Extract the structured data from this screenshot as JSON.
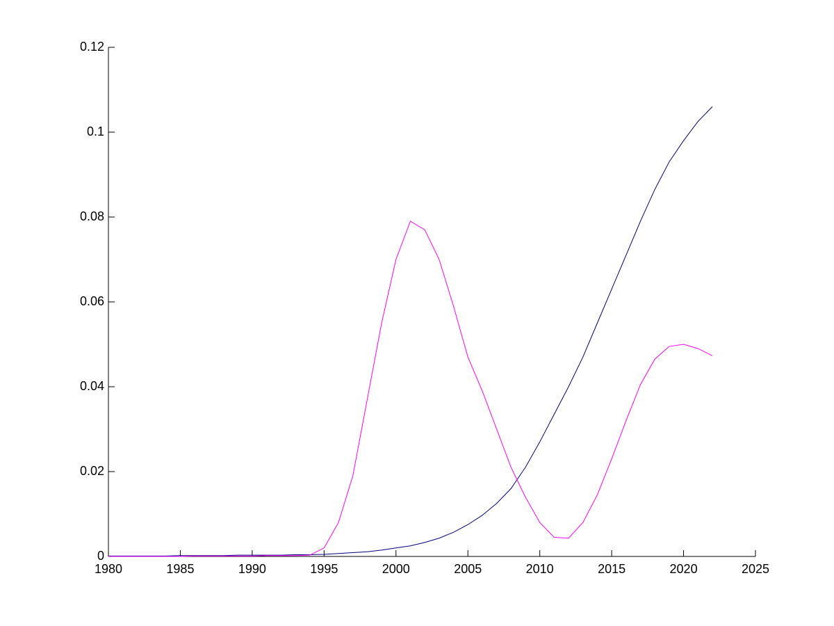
{
  "chart_data": {
    "type": "line",
    "x": [
      1980,
      1981,
      1982,
      1983,
      1984,
      1985,
      1986,
      1987,
      1988,
      1989,
      1990,
      1991,
      1992,
      1993,
      1994,
      1995,
      1996,
      1997,
      1998,
      1999,
      2000,
      2001,
      2002,
      2003,
      2004,
      2005,
      2006,
      2007,
      2008,
      2009,
      2010,
      2011,
      2012,
      2013,
      2014,
      2015,
      2016,
      2017,
      2018,
      2019,
      2020,
      2021,
      2022
    ],
    "series": [
      {
        "color": "#000080",
        "values": [
          0.0001,
          0.0001,
          0.0001,
          0.0001,
          0.0001,
          0.0002,
          0.0002,
          0.0002,
          0.0002,
          0.0003,
          0.0003,
          0.0003,
          0.0003,
          0.0004,
          0.0004,
          0.0005,
          0.0007,
          0.0009,
          0.0011,
          0.0015,
          0.002,
          0.0025,
          0.0033,
          0.0043,
          0.0057,
          0.0075,
          0.0097,
          0.0125,
          0.016,
          0.021,
          0.027,
          0.0335,
          0.04,
          0.047,
          0.055,
          0.063,
          0.071,
          0.079,
          0.0865,
          0.093,
          0.098,
          0.1025,
          0.106
        ]
      },
      {
        "color": "#ff00ff",
        "values": [
          0,
          0,
          0,
          0,
          0,
          0,
          0.0001,
          0.0001,
          0.0001,
          0.0001,
          0.0001,
          0.0002,
          0.0002,
          0.0002,
          0.0003,
          0.002,
          0.008,
          0.019,
          0.037,
          0.055,
          0.07,
          0.079,
          0.077,
          0.07,
          0.059,
          0.047,
          0.039,
          0.03,
          0.021,
          0.014,
          0.008,
          0.0045,
          0.0043,
          0.008,
          0.0145,
          0.023,
          0.032,
          0.0405,
          0.0465,
          0.0495,
          0.05,
          0.049,
          0.0473
        ]
      }
    ],
    "xlim": [
      1980,
      2025
    ],
    "xticks": [
      1980,
      1985,
      1990,
      1995,
      2000,
      2005,
      2010,
      2015,
      2020,
      2025
    ],
    "ylim": [
      0,
      0.12
    ],
    "yticks": [
      0,
      0.02,
      0.04,
      0.06,
      0.08,
      0.1,
      0.12
    ],
    "grid": false
  }
}
